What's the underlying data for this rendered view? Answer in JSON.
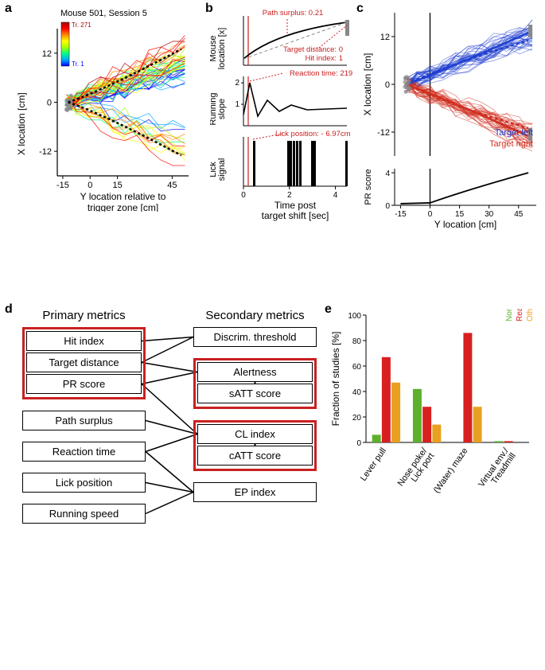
{
  "panelA": {
    "label": "a",
    "title": "Mouse 501, Session 5",
    "colorbar_top": "Tr. 271",
    "colorbar_bottom": "Tr. 1",
    "xlabel": "Y location relative to\ntrigger zone [cm]",
    "ylabel": "X location [cm]",
    "xticks": [
      -15,
      0,
      15,
      45
    ],
    "yticks": [
      -12,
      0,
      12
    ],
    "colormap": [
      "#0000ff",
      "#00aaff",
      "#00ff88",
      "#aaff00",
      "#ffff00",
      "#ff8800",
      "#ff0000",
      "#aa0000"
    ],
    "n_trajectories": 60,
    "xlim": [
      -18,
      54
    ],
    "ylim": [
      -18,
      18
    ]
  },
  "panelB": {
    "label": "b",
    "sub1": {
      "ylabel": "Mouse\nlocation [x]",
      "annot1": "Path surplus: 0.21",
      "annot2": "Target distance: 0",
      "annot3": "Hit index: 1"
    },
    "sub2": {
      "ylabel": "Running\nslope",
      "annot": "Reaction time: 219 ms",
      "yticks": [
        1,
        2
      ]
    },
    "sub3": {
      "ylabel": "Lick\nsignal",
      "annot": "Lick position: - 6.97cm",
      "xlabel": "Time post\ntarget shift [sec]",
      "xticks": [
        0,
        2,
        4
      ]
    }
  },
  "panelC": {
    "label": "c",
    "ylabel": "X location [cm]",
    "yticks": [
      -12,
      0,
      12
    ],
    "legend_left": "Target left",
    "legend_right": "Target right",
    "left_color": "#2040d0",
    "right_color": "#d03020",
    "sub2": {
      "ylabel": "PR score",
      "xlabel": "Y location [cm]",
      "xticks": [
        -15,
        0,
        15,
        30,
        45
      ],
      "yticks": [
        0,
        4
      ]
    }
  },
  "panelD": {
    "label": "d",
    "primary_header": "Primary metrics",
    "secondary_header": "Secondary metrics",
    "primary": [
      "Hit index",
      "Target distance",
      "PR score",
      "Path surplus",
      "Reaction time",
      "Lick position",
      "Running speed"
    ],
    "secondary": [
      "Discrim. threshold",
      "Alertness",
      "sATT score",
      "CL index",
      "cATT score",
      "EP index"
    ]
  },
  "panelE": {
    "label": "e",
    "ylabel": "Fraction of studies [%]",
    "categories": [
      "Lever pull",
      "Nose poke/\nLick port",
      "(Water) maze",
      "Virtual env./\nTreadmill"
    ],
    "series": [
      {
        "name": "Non-binary accuracy",
        "color": "#5cb02c",
        "values": [
          6,
          42,
          0,
          1
        ]
      },
      {
        "name": "Reaction times",
        "color": "#d82020",
        "values": [
          67,
          28,
          86,
          1
        ]
      },
      {
        "name": "Other timing metrics",
        "color": "#e8a020",
        "values": [
          47,
          14,
          28,
          0
        ]
      }
    ],
    "yticks": [
      0,
      20,
      40,
      60,
      80,
      100
    ],
    "ylim": [
      0,
      100
    ]
  }
}
